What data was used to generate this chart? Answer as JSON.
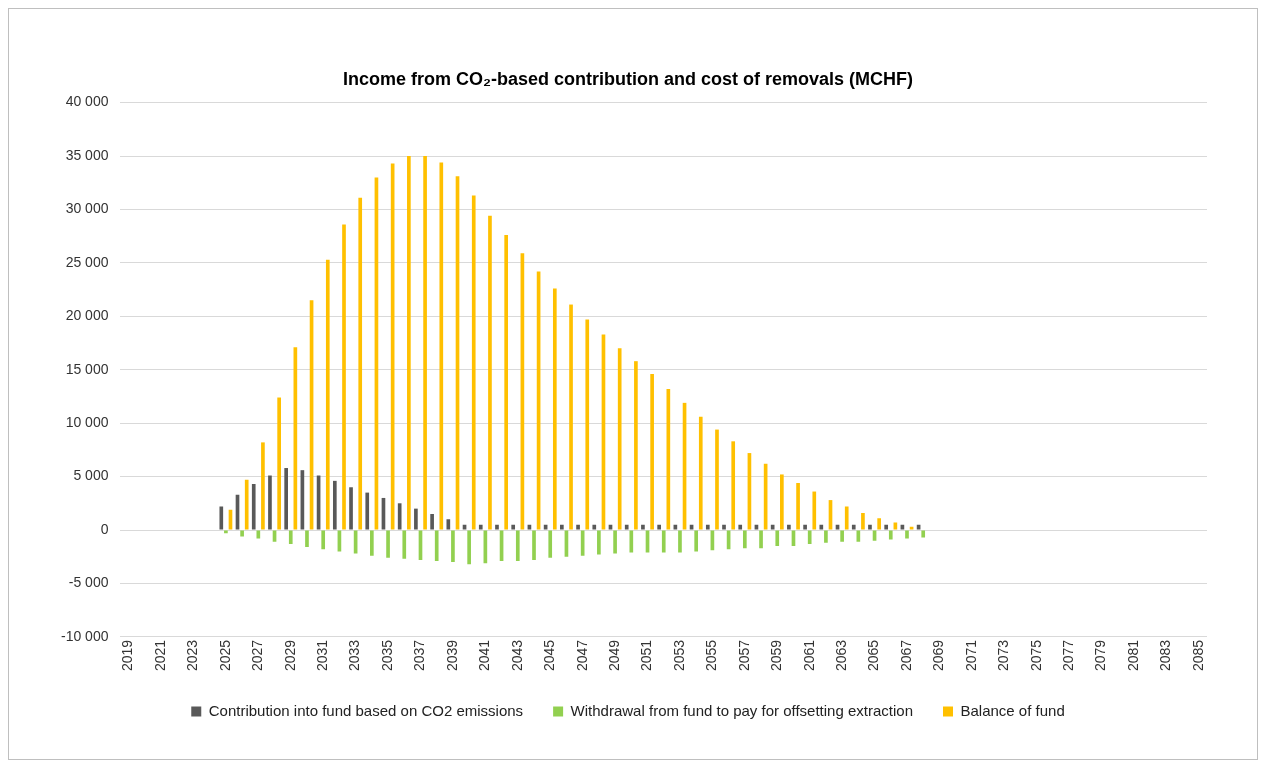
{
  "chart_data": {
    "type": "bar",
    "title": "Income from CO₂-based contribution and cost of removals (MCHF)",
    "categories": [
      "2019",
      null,
      "2021",
      null,
      "2023",
      null,
      "2025",
      null,
      "2027",
      null,
      "2029",
      null,
      "2031",
      null,
      "2033",
      null,
      "2035",
      null,
      "2037",
      null,
      "2039",
      null,
      "2041",
      null,
      "2043",
      null,
      "2045",
      null,
      "2047",
      null,
      "2049",
      null,
      "2051",
      null,
      "2053",
      null,
      "2055",
      null,
      "2057",
      null,
      "2059",
      null,
      "2061",
      null,
      "2063",
      null,
      "2065",
      null,
      "2067",
      null,
      "2069",
      null,
      "2071",
      null,
      "2073",
      null,
      "2075",
      null,
      "2077",
      null,
      "2079",
      null,
      "2081",
      null,
      "2083",
      null,
      "2085"
    ],
    "series": [
      {
        "name": "Contribution into fund based on CO2 emissions",
        "color": "#595959",
        "values": [
          null,
          null,
          null,
          null,
          null,
          null,
          2200,
          3300,
          4300,
          5100,
          5800,
          5600,
          5100,
          4600,
          4000,
          3500,
          3000,
          2500,
          2000,
          1500,
          1000,
          500,
          500,
          500,
          500,
          500,
          500,
          500,
          500,
          500,
          500,
          500,
          500,
          500,
          500,
          500,
          500,
          500,
          500,
          500,
          500,
          500,
          500,
          500,
          500,
          500,
          500,
          500,
          500,
          500,
          null,
          null,
          null,
          null,
          null,
          null,
          null,
          null,
          null,
          null,
          null,
          null,
          null,
          null,
          null,
          null,
          null
        ]
      },
      {
        "name": "Withdrawal from fund to pay for offsetting extraction",
        "color": "#92d050",
        "values": [
          null,
          null,
          null,
          null,
          null,
          null,
          -300,
          -600,
          -800,
          -1100,
          -1300,
          -1600,
          -1800,
          -2000,
          -2200,
          -2400,
          -2600,
          -2700,
          -2800,
          -2900,
          -3000,
          -3200,
          -3100,
          -2900,
          -2900,
          -2800,
          -2600,
          -2500,
          -2400,
          -2300,
          -2200,
          -2100,
          -2100,
          -2100,
          -2100,
          -2000,
          -1900,
          -1800,
          -1700,
          -1700,
          -1500,
          -1500,
          -1300,
          -1200,
          -1100,
          -1100,
          -1000,
          -900,
          -800,
          -700,
          null,
          null,
          null,
          null,
          null,
          null,
          null,
          null,
          null,
          null,
          null,
          null,
          null,
          null,
          null,
          null,
          null
        ]
      },
      {
        "name": "Balance of fund",
        "color": "#ffc000",
        "values": [
          null,
          null,
          null,
          null,
          null,
          null,
          1900,
          4700,
          8200,
          12400,
          17100,
          21500,
          25300,
          28600,
          31100,
          33000,
          34300,
          35000,
          35000,
          34400,
          33100,
          31300,
          29400,
          27600,
          25900,
          24200,
          22600,
          21100,
          19700,
          18300,
          17000,
          15800,
          14600,
          13200,
          11900,
          10600,
          9400,
          8300,
          7200,
          6200,
          5200,
          4400,
          3600,
          2800,
          2200,
          1600,
          1100,
          700,
          300,
          null,
          null,
          null,
          null,
          null,
          null,
          null,
          null,
          null,
          null,
          null,
          null,
          null,
          null,
          null,
          null,
          null,
          null
        ]
      }
    ],
    "ylim": [
      -10000,
      40000
    ],
    "yticks": [
      {
        "value": -10000,
        "label": "-10 000"
      },
      {
        "value": -5000,
        "label": "-5 000"
      },
      0,
      {
        "value": 5000,
        "label": "5 000"
      },
      {
        "value": 10000,
        "label": "10 000"
      },
      {
        "value": 15000,
        "label": "15 000"
      },
      {
        "value": 20000,
        "label": "20 000"
      },
      {
        "value": 25000,
        "label": "25 000"
      },
      {
        "value": 30000,
        "label": "30 000"
      },
      {
        "value": 35000,
        "label": "35 000"
      },
      {
        "value": 40000,
        "label": "40 000"
      }
    ],
    "grid": "y",
    "legend": "bottom"
  }
}
